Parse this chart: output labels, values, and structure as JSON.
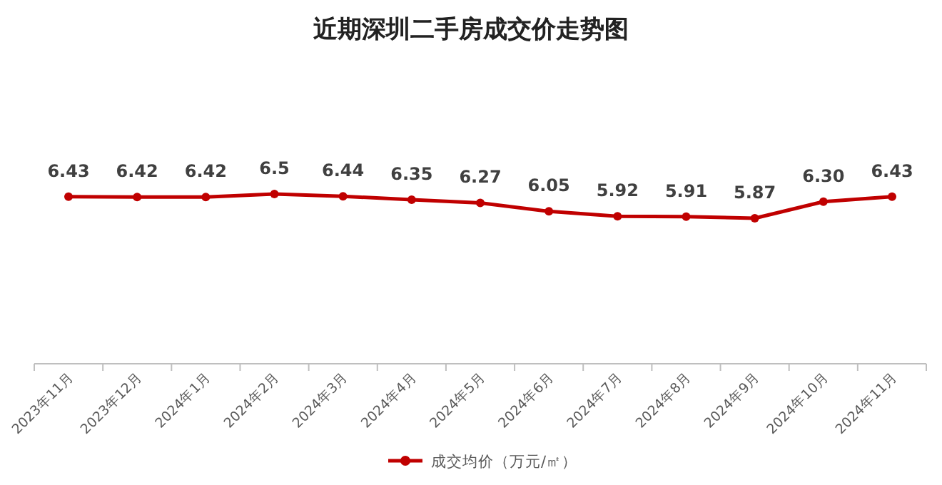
{
  "chart_data": {
    "type": "line",
    "title": "近期深圳二手房成交价走势图",
    "categories": [
      "2023年11月",
      "2023年12月",
      "2024年1月",
      "2024年2月",
      "2024年3月",
      "2024年4月",
      "2024年5月",
      "2024年6月",
      "2024年7月",
      "2024年8月",
      "2024年9月",
      "2024年10月",
      "2024年11月"
    ],
    "series": [
      {
        "name": "成交均价（万元/㎡）",
        "color": "#c00000",
        "values": [
          6.43,
          6.42,
          6.42,
          6.5,
          6.44,
          6.35,
          6.27,
          6.05,
          5.92,
          5.91,
          5.87,
          6.3,
          6.43
        ],
        "value_labels": [
          "6.43",
          "6.42",
          "6.42",
          "6.5",
          "6.44",
          "6.35",
          "6.27",
          "6.05",
          "5.92",
          "5.91",
          "5.87",
          "6.30",
          "6.43"
        ]
      }
    ],
    "marker": "circle",
    "line_style": "solid",
    "legend": "bottom"
  }
}
